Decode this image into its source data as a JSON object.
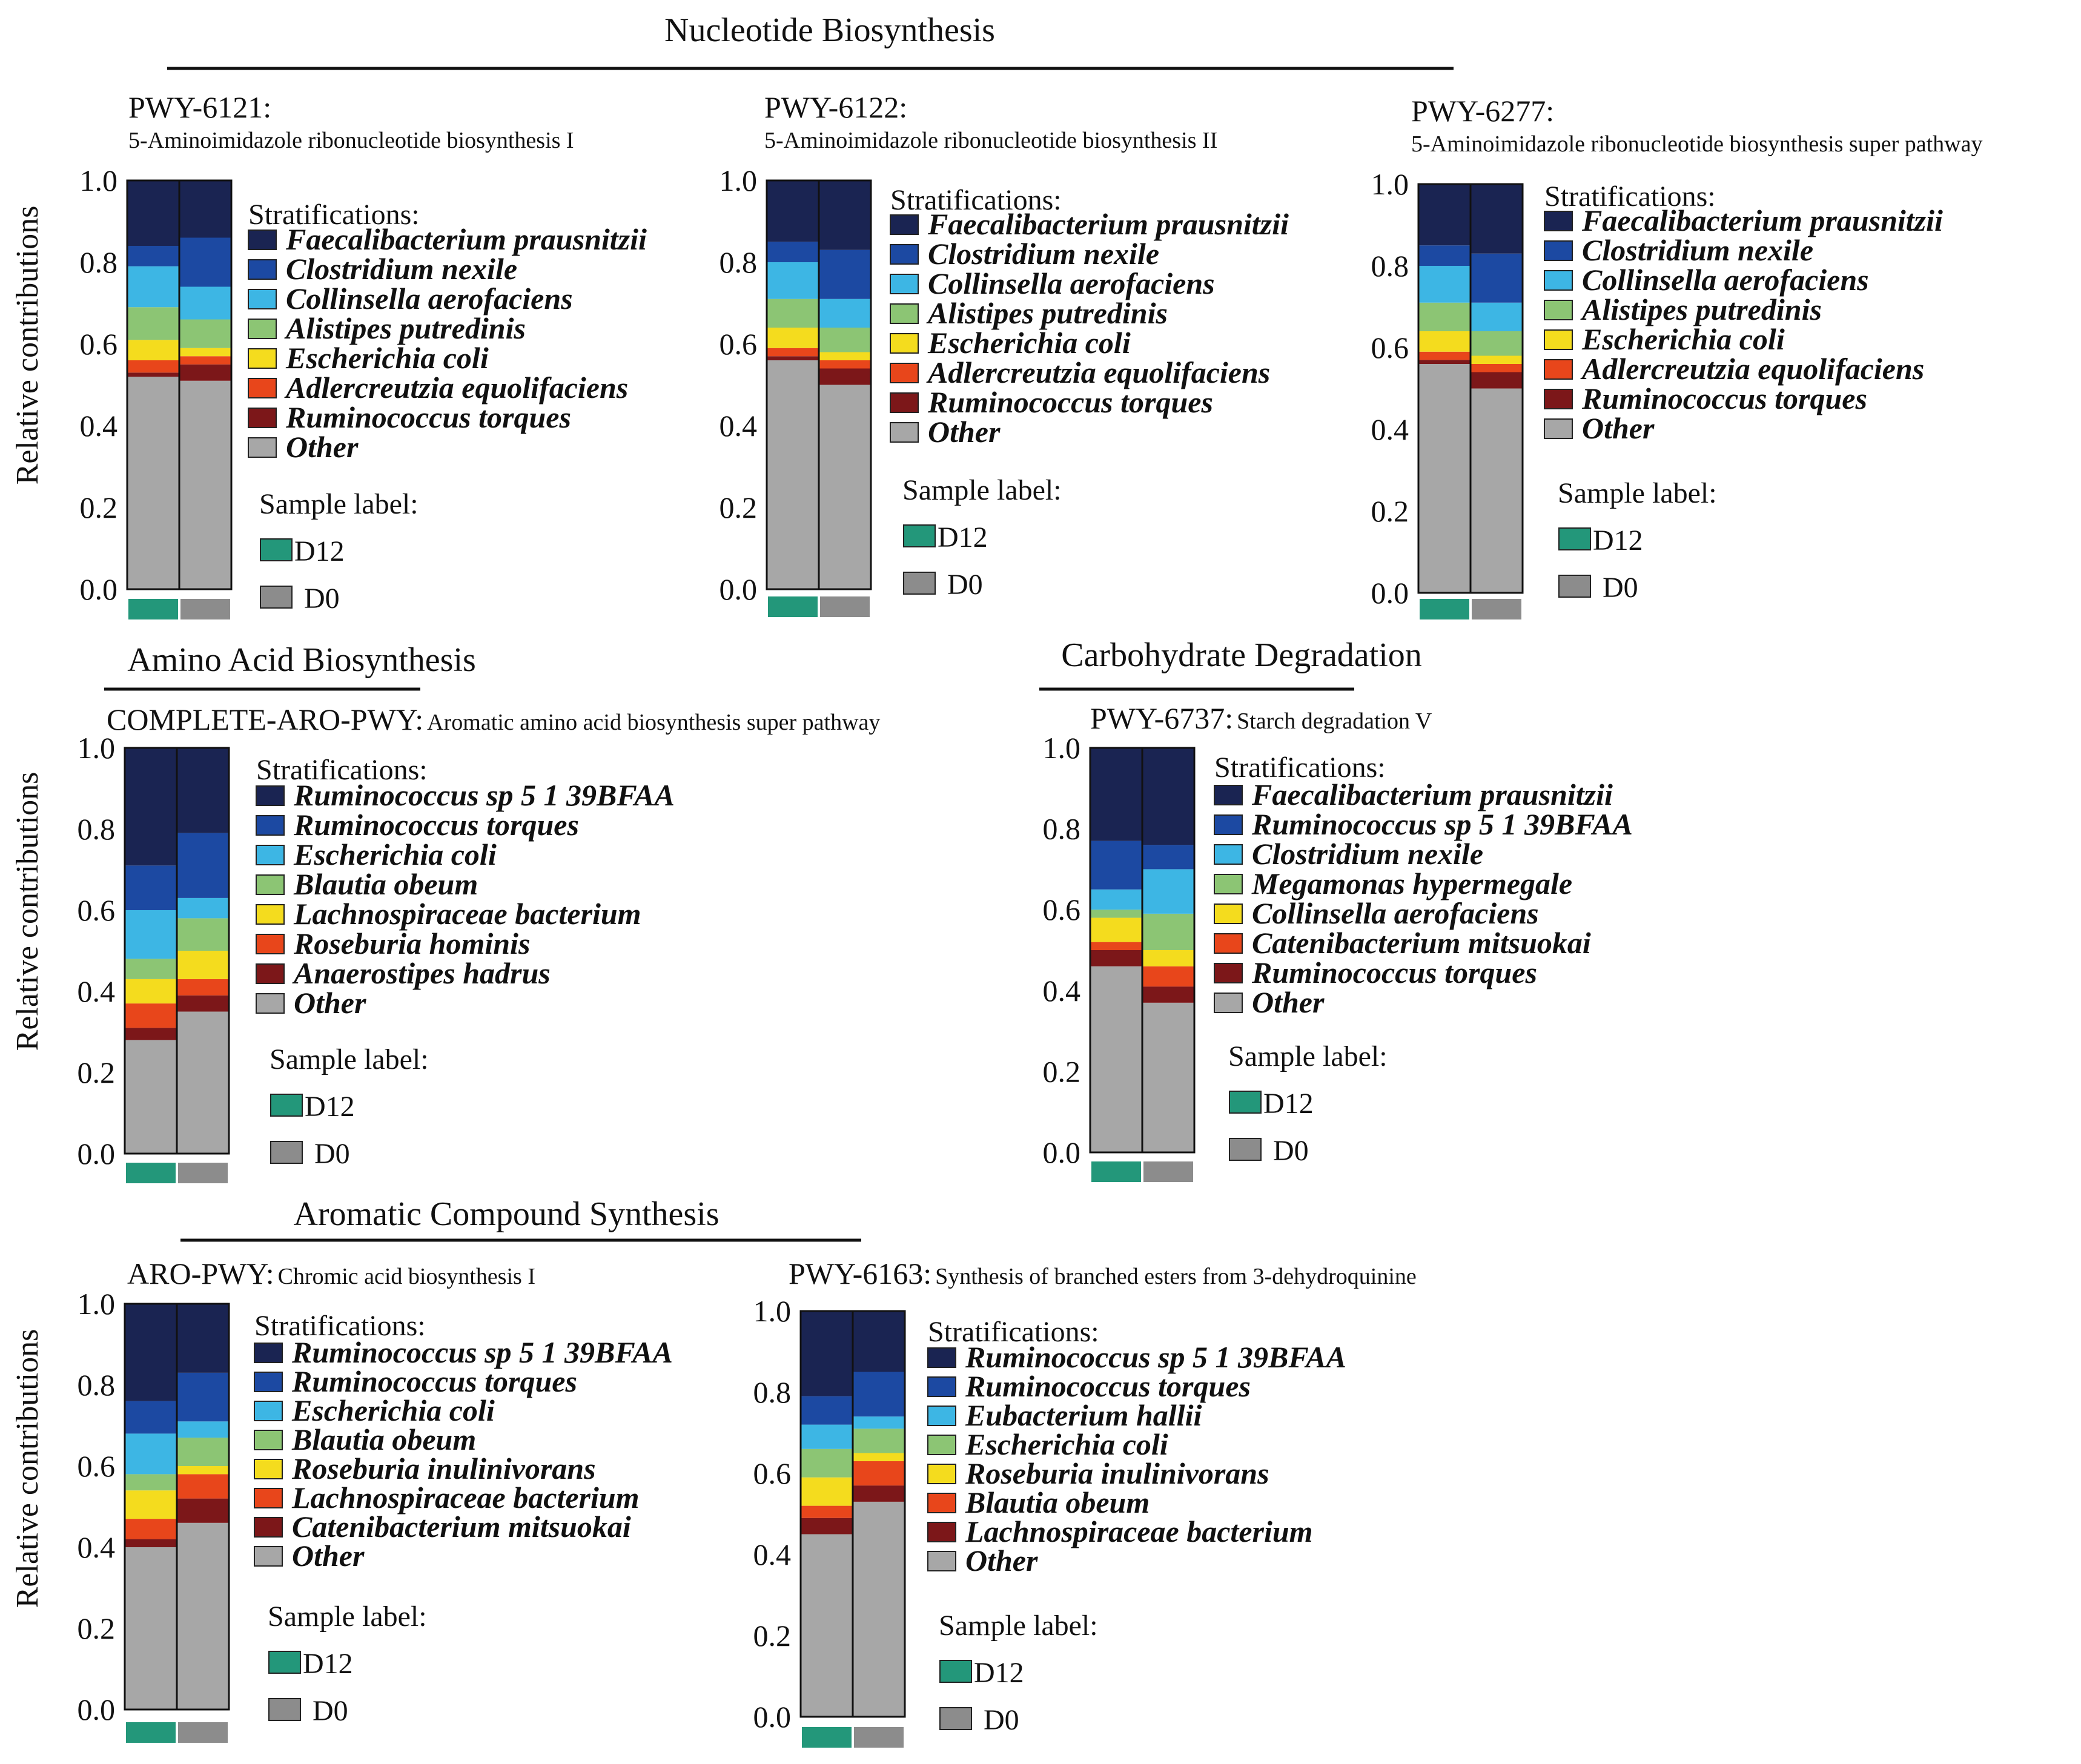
{
  "palette": {
    "navy": "#1a2452",
    "blue": "#1c49a2",
    "sky": "#3db6e4",
    "green": "#8cc574",
    "yellow": "#f4dc1e",
    "orange": "#e8461b",
    "maroon": "#7c1719",
    "grey": "#a7a7a7",
    "d12": "#23977a",
    "d0": "#8c8c8c"
  },
  "sections": [
    {
      "key": "nucleotide",
      "title": "Nucleotide Biosynthesis"
    },
    {
      "key": "amino",
      "title": "Amino Acid Biosynthesis"
    },
    {
      "key": "carb",
      "title": "Carbohydrate Degradation"
    },
    {
      "key": "aromatic",
      "title": "Aromatic Compound Synthesis"
    }
  ],
  "common": {
    "ylabel": "Relative contributions",
    "yticks": [
      "0.0",
      "0.2",
      "0.4",
      "0.6",
      "0.8",
      "1.0"
    ],
    "legend_title": "Stratifications:",
    "sample_title": "Sample label:",
    "samples": [
      "D12",
      "D0"
    ]
  },
  "chart_data": [
    {
      "type": "bar",
      "stacked": true,
      "id": "PWY-6121:",
      "description": "5-Aminoimidazole ribonucleotide biosynthesis I",
      "ylabel": "Relative contributions",
      "ylim": [
        0,
        1
      ],
      "categories": [
        "D12",
        "D0"
      ],
      "series": [
        {
          "name": "Other",
          "color": "grey",
          "values": [
            0.52,
            0.51
          ]
        },
        {
          "name": "Ruminococcus torques",
          "color": "maroon",
          "values": [
            0.01,
            0.04
          ]
        },
        {
          "name": "Adlercreutzia equolifaciens",
          "color": "orange",
          "values": [
            0.03,
            0.02
          ]
        },
        {
          "name": "Escherichia coli",
          "color": "yellow",
          "values": [
            0.05,
            0.02
          ]
        },
        {
          "name": "Alistipes putredinis",
          "color": "green",
          "values": [
            0.08,
            0.07
          ]
        },
        {
          "name": "Collinsella aerofaciens",
          "color": "sky",
          "values": [
            0.1,
            0.08
          ]
        },
        {
          "name": "Clostridium nexile",
          "color": "blue",
          "values": [
            0.05,
            0.12
          ]
        },
        {
          "name": "Faecalibacterium prausnitzii",
          "color": "navy",
          "values": [
            0.16,
            0.14
          ]
        }
      ]
    },
    {
      "type": "bar",
      "stacked": true,
      "id": "PWY-6122:",
      "description": "5-Aminoimidazole ribonucleotide biosynthesis II",
      "ylabel": "",
      "ylim": [
        0,
        1
      ],
      "categories": [
        "D12",
        "D0"
      ],
      "series": [
        {
          "name": "Other",
          "color": "grey",
          "values": [
            0.56,
            0.5
          ]
        },
        {
          "name": "Ruminococcus torques",
          "color": "maroon",
          "values": [
            0.01,
            0.04
          ]
        },
        {
          "name": "Adlercreutzia equolifaciens",
          "color": "orange",
          "values": [
            0.02,
            0.02
          ]
        },
        {
          "name": "Escherichia coli",
          "color": "yellow",
          "values": [
            0.05,
            0.02
          ]
        },
        {
          "name": "Alistipes putredinis",
          "color": "green",
          "values": [
            0.07,
            0.06
          ]
        },
        {
          "name": "Collinsella aerofaciens",
          "color": "sky",
          "values": [
            0.09,
            0.07
          ]
        },
        {
          "name": "Clostridium nexile",
          "color": "blue",
          "values": [
            0.05,
            0.12
          ]
        },
        {
          "name": "Faecalibacterium prausnitzii",
          "color": "navy",
          "values": [
            0.15,
            0.17
          ]
        }
      ]
    },
    {
      "type": "bar",
      "stacked": true,
      "id": "PWY-6277:",
      "description": "5-Aminoimidazole ribonucleotide biosynthesis super pathway",
      "ylabel": "",
      "ylim": [
        0,
        1
      ],
      "categories": [
        "D12",
        "D0"
      ],
      "series": [
        {
          "name": "Other",
          "color": "grey",
          "values": [
            0.56,
            0.5
          ]
        },
        {
          "name": "Ruminococcus torques",
          "color": "maroon",
          "values": [
            0.01,
            0.04
          ]
        },
        {
          "name": "Adlercreutzia equolifaciens",
          "color": "orange",
          "values": [
            0.02,
            0.02
          ]
        },
        {
          "name": "Escherichia coli",
          "color": "yellow",
          "values": [
            0.05,
            0.02
          ]
        },
        {
          "name": "Alistipes putredinis",
          "color": "green",
          "values": [
            0.07,
            0.06
          ]
        },
        {
          "name": "Collinsella aerofaciens",
          "color": "sky",
          "values": [
            0.09,
            0.07
          ]
        },
        {
          "name": "Clostridium nexile",
          "color": "blue",
          "values": [
            0.05,
            0.12
          ]
        },
        {
          "name": "Faecalibacterium prausnitzii",
          "color": "navy",
          "values": [
            0.15,
            0.17
          ]
        }
      ]
    },
    {
      "type": "bar",
      "stacked": true,
      "id": "COMPLETE-ARO-PWY:",
      "description": "Aromatic amino acid biosynthesis super pathway",
      "ylabel": "Relative contributions",
      "ylim": [
        0,
        1
      ],
      "categories": [
        "D12",
        "D0"
      ],
      "series": [
        {
          "name": "Other",
          "color": "grey",
          "values": [
            0.28,
            0.35
          ]
        },
        {
          "name": "Anaerostipes hadrus",
          "color": "maroon",
          "values": [
            0.03,
            0.04
          ]
        },
        {
          "name": "Roseburia hominis",
          "color": "orange",
          "values": [
            0.06,
            0.04
          ]
        },
        {
          "name": "Lachnospiraceae bacterium",
          "color": "yellow",
          "values": [
            0.06,
            0.07
          ]
        },
        {
          "name": "Blautia obeum",
          "color": "green",
          "values": [
            0.05,
            0.08
          ]
        },
        {
          "name": "Escherichia coli",
          "color": "sky",
          "values": [
            0.12,
            0.05
          ]
        },
        {
          "name": "Ruminococcus torques",
          "color": "blue",
          "values": [
            0.11,
            0.16
          ]
        },
        {
          "name": "Ruminococcus sp 5 1 39BFAA",
          "color": "navy",
          "values": [
            0.29,
            0.21
          ]
        }
      ]
    },
    {
      "type": "bar",
      "stacked": true,
      "id": "PWY-6737:",
      "description": "Starch degradation V",
      "ylabel": "",
      "ylim": [
        0,
        1
      ],
      "categories": [
        "D12",
        "D0"
      ],
      "series": [
        {
          "name": "Other",
          "color": "grey",
          "values": [
            0.46,
            0.37
          ]
        },
        {
          "name": "Ruminococcus torques",
          "color": "maroon",
          "values": [
            0.04,
            0.04
          ]
        },
        {
          "name": "Catenibacterium mitsuokai",
          "color": "orange",
          "values": [
            0.02,
            0.05
          ]
        },
        {
          "name": "Collinsella aerofaciens",
          "color": "yellow",
          "values": [
            0.06,
            0.04
          ]
        },
        {
          "name": "Megamonas hypermegale",
          "color": "green",
          "values": [
            0.02,
            0.09
          ]
        },
        {
          "name": "Clostridium nexile",
          "color": "sky",
          "values": [
            0.05,
            0.11
          ]
        },
        {
          "name": "Ruminococcus sp 5 1 39BFAA",
          "color": "blue",
          "values": [
            0.12,
            0.06
          ]
        },
        {
          "name": "Faecalibacterium prausnitzii",
          "color": "navy",
          "values": [
            0.23,
            0.24
          ]
        }
      ]
    },
    {
      "type": "bar",
      "stacked": true,
      "id": "ARO-PWY:",
      "description": "Chromic acid biosynthesis I",
      "ylabel": "Relative contributions",
      "ylim": [
        0,
        1
      ],
      "categories": [
        "D12",
        "D0"
      ],
      "series": [
        {
          "name": "Other",
          "color": "grey",
          "values": [
            0.4,
            0.46
          ]
        },
        {
          "name": "Catenibacterium mitsuokai",
          "color": "maroon",
          "values": [
            0.02,
            0.06
          ]
        },
        {
          "name": "Lachnospiraceae bacterium",
          "color": "orange",
          "values": [
            0.05,
            0.06
          ]
        },
        {
          "name": "Roseburia inulinivorans",
          "color": "yellow",
          "values": [
            0.07,
            0.02
          ]
        },
        {
          "name": "Blautia obeum",
          "color": "green",
          "values": [
            0.04,
            0.07
          ]
        },
        {
          "name": "Escherichia coli",
          "color": "sky",
          "values": [
            0.1,
            0.04
          ]
        },
        {
          "name": "Ruminococcus torques",
          "color": "blue",
          "values": [
            0.08,
            0.12
          ]
        },
        {
          "name": "Ruminococcus sp 5 1 39BFAA",
          "color": "navy",
          "values": [
            0.24,
            0.17
          ]
        }
      ]
    },
    {
      "type": "bar",
      "stacked": true,
      "id": "PWY-6163:",
      "description": "Synthesis of branched esters from 3-dehydroquinine",
      "ylabel": "",
      "ylim": [
        0,
        1
      ],
      "categories": [
        "D12",
        "D0"
      ],
      "series": [
        {
          "name": "Other",
          "color": "grey",
          "values": [
            0.45,
            0.53
          ]
        },
        {
          "name": "Lachnospiraceae bacterium",
          "color": "maroon",
          "values": [
            0.04,
            0.04
          ]
        },
        {
          "name": "Blautia obeum",
          "color": "orange",
          "values": [
            0.03,
            0.06
          ]
        },
        {
          "name": "Roseburia inulinivorans",
          "color": "yellow",
          "values": [
            0.07,
            0.02
          ]
        },
        {
          "name": "Escherichia coli",
          "color": "green",
          "values": [
            0.07,
            0.06
          ]
        },
        {
          "name": "Eubacterium hallii",
          "color": "sky",
          "values": [
            0.06,
            0.03
          ]
        },
        {
          "name": "Ruminococcus torques",
          "color": "blue",
          "values": [
            0.07,
            0.11
          ]
        },
        {
          "name": "Ruminococcus sp 5 1 39BFAA",
          "color": "navy",
          "values": [
            0.21,
            0.15
          ]
        }
      ]
    }
  ]
}
